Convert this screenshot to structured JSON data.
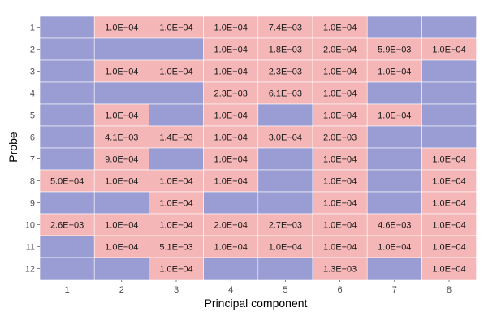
{
  "chart_data": {
    "type": "heatmap",
    "xlabel": "Principal component",
    "ylabel": "Probe",
    "x_categories": [
      "1",
      "2",
      "3",
      "4",
      "5",
      "6",
      "7",
      "8"
    ],
    "y_categories": [
      "1",
      "2",
      "3",
      "4",
      "5",
      "6",
      "7",
      "8",
      "9",
      "10",
      "11",
      "12"
    ],
    "colors": {
      "significant": "#f4b6b6",
      "not_significant": "#9a9dd3",
      "grid": "#ffffff"
    },
    "grid": true,
    "legend": "none",
    "cells": [
      [
        "",
        "1.0E−04",
        "1.0E−04",
        "1.0E−04",
        "7.4E−03",
        "1.0E−04",
        "",
        ""
      ],
      [
        "",
        "",
        "",
        "1.0E−04",
        "1.8E−03",
        "2.0E−04",
        "5.9E−03",
        "1.0E−04"
      ],
      [
        "",
        "1.0E−04",
        "1.0E−04",
        "1.0E−04",
        "2.3E−03",
        "1.0E−04",
        "1.0E−04",
        ""
      ],
      [
        "",
        "",
        "",
        "2.3E−03",
        "6.1E−03",
        "1.0E−04",
        "",
        ""
      ],
      [
        "",
        "1.0E−04",
        "",
        "1.0E−04",
        "",
        "1.0E−04",
        "1.0E−04",
        ""
      ],
      [
        "",
        "4.1E−03",
        "1.4E−03",
        "1.0E−04",
        "3.0E−04",
        "2.0E−03",
        "",
        ""
      ],
      [
        "",
        "9.0E−04",
        "",
        "1.0E−04",
        "",
        "1.0E−04",
        "",
        "1.0E−04"
      ],
      [
        "5.0E−04",
        "1.0E−04",
        "1.0E−04",
        "1.0E−04",
        "",
        "1.0E−04",
        "",
        "1.0E−04"
      ],
      [
        "",
        "",
        "1.0E−04",
        "",
        "",
        "1.0E−04",
        "",
        "1.0E−04"
      ],
      [
        "2.6E−03",
        "1.0E−04",
        "1.0E−04",
        "2.0E−04",
        "2.7E−03",
        "1.0E−04",
        "4.6E−03",
        "1.0E−04"
      ],
      [
        "",
        "1.0E−04",
        "5.1E−03",
        "1.0E−04",
        "1.0E−04",
        "1.0E−04",
        "1.0E−04",
        "1.0E−04"
      ],
      [
        "",
        "",
        "1.0E−04",
        "",
        "",
        "1.3E−03",
        "",
        "1.0E−04"
      ]
    ]
  }
}
